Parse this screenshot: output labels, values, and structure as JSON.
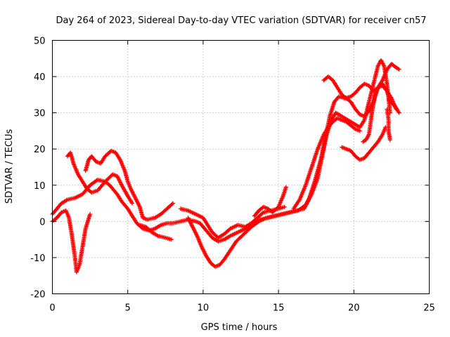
{
  "chart_data": {
    "type": "scatter",
    "title": "Day 264 of 2023, Sidereal Day-to-day VTEC variation (SDTVAR) for receiver cn57",
    "xlabel": "GPS time / hours",
    "ylabel": "SDTVAR / TECUs",
    "xlim": [
      0,
      25
    ],
    "ylim": [
      -20,
      50
    ],
    "xticks": [
      0,
      5,
      10,
      15,
      20,
      25
    ],
    "yticks": [
      -20,
      -10,
      0,
      10,
      20,
      30,
      40,
      50
    ],
    "xtick_labels": [
      "0",
      "5",
      "10",
      "15",
      "20",
      "25"
    ],
    "ytick_labels": [
      "-20",
      "-10",
      "0",
      "10",
      "20",
      "30",
      "40",
      "50"
    ],
    "grid": true,
    "legend": "none",
    "marker": "plus",
    "color": "#ff0000",
    "series": [
      {
        "points": [
          [
            0.0,
            2.0
          ],
          [
            0.3,
            3.5
          ],
          [
            0.6,
            5.0
          ],
          [
            1.0,
            6.0
          ],
          [
            1.5,
            6.5
          ],
          [
            2.0,
            7.5
          ],
          [
            2.5,
            10.0
          ],
          [
            3.0,
            11.5
          ],
          [
            3.5,
            11.0
          ],
          [
            3.8,
            10.0
          ],
          [
            4.0,
            9.0
          ],
          [
            4.3,
            7.5
          ],
          [
            4.6,
            5.5
          ],
          [
            5.0,
            3.5
          ],
          [
            5.3,
            1.5
          ],
          [
            5.6,
            -0.5
          ],
          [
            6.0,
            -2.0
          ],
          [
            6.4,
            -2.5
          ],
          [
            6.8,
            -2.0
          ],
          [
            7.2,
            -1.0
          ],
          [
            7.6,
            -0.5
          ],
          [
            8.0,
            -0.5
          ],
          [
            8.5,
            0.0
          ],
          [
            9.0,
            0.5
          ],
          [
            9.5,
            0.0
          ],
          [
            9.8,
            -0.5
          ],
          [
            10.2,
            -2.5
          ],
          [
            10.6,
            -4.5
          ],
          [
            11.0,
            -5.5
          ],
          [
            11.4,
            -5.0
          ],
          [
            11.8,
            -4.0
          ],
          [
            12.3,
            -3.0
          ],
          [
            12.8,
            -2.0
          ],
          [
            13.3,
            -0.5
          ],
          [
            13.8,
            0.5
          ],
          [
            14.3,
            1.0
          ],
          [
            14.8,
            1.5
          ],
          [
            15.3,
            2.0
          ],
          [
            15.8,
            2.5
          ],
          [
            16.3,
            3.0
          ],
          [
            16.8,
            4.5
          ],
          [
            17.2,
            7.5
          ],
          [
            17.6,
            12.0
          ],
          [
            17.9,
            18.0
          ],
          [
            18.2,
            24.0
          ],
          [
            18.5,
            28.0
          ],
          [
            18.8,
            30.0
          ],
          [
            19.2,
            29.0
          ],
          [
            19.6,
            28.0
          ],
          [
            20.0,
            27.0
          ],
          [
            20.4,
            26.0
          ],
          [
            20.7,
            28.0
          ],
          [
            21.0,
            33.0
          ],
          [
            21.3,
            38.0
          ],
          [
            21.6,
            43.0
          ],
          [
            21.8,
            44.5
          ],
          [
            22.0,
            43.0
          ],
          [
            22.2,
            38.0
          ],
          [
            22.4,
            30.0
          ]
        ]
      },
      {
        "points": [
          [
            0.0,
            0.0
          ],
          [
            0.3,
            1.0
          ],
          [
            0.6,
            2.5
          ],
          [
            0.9,
            3.0
          ],
          [
            1.1,
            1.0
          ],
          [
            1.3,
            -4.0
          ],
          [
            1.5,
            -10.0
          ],
          [
            1.6,
            -14.0
          ],
          [
            1.8,
            -12.0
          ],
          [
            2.0,
            -7.0
          ],
          [
            2.2,
            -2.0
          ],
          [
            2.5,
            2.0
          ]
        ]
      },
      {
        "points": [
          [
            1.0,
            18.0
          ],
          [
            1.2,
            19.0
          ],
          [
            1.4,
            16.0
          ],
          [
            1.7,
            13.0
          ],
          [
            2.0,
            11.0
          ],
          [
            2.3,
            9.0
          ],
          [
            2.6,
            8.0
          ],
          [
            3.0,
            8.5
          ],
          [
            3.5,
            11.0
          ],
          [
            4.0,
            13.0
          ],
          [
            4.3,
            12.5
          ],
          [
            4.6,
            10.0
          ],
          [
            5.0,
            7.0
          ],
          [
            5.3,
            5.0
          ]
        ]
      },
      {
        "points": [
          [
            2.2,
            14.0
          ],
          [
            2.4,
            17.0
          ],
          [
            2.6,
            18.0
          ],
          [
            2.9,
            16.5
          ],
          [
            3.2,
            16.0
          ],
          [
            3.5,
            18.0
          ],
          [
            3.9,
            19.5
          ],
          [
            4.2,
            19.0
          ],
          [
            4.5,
            17.0
          ],
          [
            4.8,
            14.0
          ],
          [
            5.0,
            11.0
          ],
          [
            5.2,
            9.0
          ],
          [
            5.5,
            6.5
          ],
          [
            5.8,
            4.0
          ],
          [
            6.0,
            1.0
          ],
          [
            6.3,
            0.5
          ],
          [
            6.8,
            1.0
          ],
          [
            7.2,
            2.0
          ],
          [
            7.6,
            3.5
          ],
          [
            8.0,
            5.0
          ]
        ]
      },
      {
        "points": [
          [
            5.8,
            -1.0
          ],
          [
            6.2,
            -1.5
          ],
          [
            6.6,
            -3.0
          ],
          [
            7.0,
            -4.0
          ],
          [
            7.5,
            -4.5
          ],
          [
            7.9,
            -5.0
          ]
        ]
      },
      {
        "points": [
          [
            8.5,
            3.5
          ],
          [
            9.0,
            3.0
          ],
          [
            9.5,
            2.0
          ],
          [
            10.0,
            1.0
          ],
          [
            10.3,
            -1.0
          ],
          [
            10.6,
            -3.0
          ],
          [
            11.0,
            -4.5
          ],
          [
            11.4,
            -3.5
          ],
          [
            11.8,
            -2.0
          ],
          [
            12.3,
            -1.0
          ],
          [
            12.8,
            -1.5
          ],
          [
            13.2,
            -0.5
          ],
          [
            13.6,
            1.0
          ],
          [
            14.0,
            2.5
          ],
          [
            14.5,
            3.0
          ],
          [
            15.0,
            3.5
          ],
          [
            15.4,
            4.0
          ]
        ]
      },
      {
        "points": [
          [
            9.0,
            1.0
          ],
          [
            9.3,
            -1.5
          ],
          [
            9.6,
            -4.0
          ],
          [
            9.9,
            -7.0
          ],
          [
            10.2,
            -9.5
          ],
          [
            10.5,
            -11.5
          ],
          [
            10.8,
            -12.5
          ],
          [
            11.1,
            -12.0
          ],
          [
            11.4,
            -10.5
          ],
          [
            11.8,
            -8.0
          ],
          [
            12.2,
            -5.5
          ],
          [
            12.7,
            -3.5
          ],
          [
            13.2,
            -1.5
          ],
          [
            13.7,
            0.0
          ],
          [
            14.2,
            1.0
          ],
          [
            14.7,
            1.5
          ],
          [
            15.2,
            2.0
          ],
          [
            15.7,
            2.5
          ],
          [
            16.2,
            3.0
          ],
          [
            16.7,
            3.5
          ],
          [
            17.0,
            6.0
          ],
          [
            17.4,
            11.0
          ],
          [
            17.8,
            17.0
          ],
          [
            18.1,
            23.0
          ],
          [
            18.4,
            29.0
          ],
          [
            18.7,
            33.0
          ],
          [
            19.0,
            34.5
          ],
          [
            19.4,
            34.0
          ],
          [
            19.8,
            34.5
          ],
          [
            20.1,
            35.5
          ],
          [
            20.4,
            37.0
          ],
          [
            20.7,
            38.0
          ],
          [
            21.0,
            37.5
          ],
          [
            21.3,
            36.0
          ],
          [
            21.6,
            37.0
          ],
          [
            21.9,
            38.0
          ],
          [
            22.2,
            36.0
          ],
          [
            22.5,
            34.0
          ],
          [
            22.8,
            31.0
          ]
        ]
      },
      {
        "points": [
          [
            13.4,
            1.5
          ],
          [
            13.7,
            3.0
          ],
          [
            14.0,
            4.0
          ],
          [
            14.3,
            3.5
          ],
          [
            14.6,
            2.5
          ],
          [
            15.0,
            4.0
          ],
          [
            15.3,
            7.0
          ],
          [
            15.5,
            9.5
          ]
        ]
      },
      {
        "points": [
          [
            16.0,
            3.5
          ],
          [
            16.4,
            6.0
          ],
          [
            16.8,
            10.0
          ],
          [
            17.2,
            15.0
          ],
          [
            17.6,
            20.0
          ],
          [
            18.0,
            24.0
          ],
          [
            18.3,
            26.0
          ],
          [
            18.6,
            27.5
          ],
          [
            18.9,
            28.5
          ],
          [
            19.2,
            28.0
          ],
          [
            19.5,
            27.5
          ],
          [
            19.8,
            26.5
          ],
          [
            20.1,
            25.5
          ],
          [
            20.4,
            25.0
          ]
        ]
      },
      {
        "points": [
          [
            18.0,
            39.0
          ],
          [
            18.3,
            40.0
          ],
          [
            18.6,
            39.0
          ],
          [
            18.9,
            37.0
          ],
          [
            19.2,
            35.0
          ],
          [
            19.5,
            34.0
          ],
          [
            19.8,
            33.0
          ],
          [
            20.1,
            31.0
          ],
          [
            20.4,
            29.5
          ],
          [
            20.7,
            29.0
          ],
          [
            21.0,
            30.5
          ],
          [
            21.3,
            33.0
          ],
          [
            21.6,
            37.0
          ],
          [
            21.9,
            39.0
          ],
          [
            22.2,
            42.0
          ],
          [
            22.5,
            43.5
          ],
          [
            22.8,
            42.5
          ],
          [
            23.0,
            42.0
          ]
        ]
      },
      {
        "points": [
          [
            19.2,
            20.5
          ],
          [
            19.5,
            20.0
          ],
          [
            19.8,
            19.5
          ],
          [
            20.1,
            18.0
          ],
          [
            20.4,
            17.0
          ],
          [
            20.7,
            17.5
          ],
          [
            21.0,
            19.0
          ],
          [
            21.3,
            20.5
          ],
          [
            21.6,
            22.0
          ],
          [
            21.9,
            24.0
          ],
          [
            22.1,
            26.0
          ]
        ]
      },
      {
        "points": [
          [
            20.6,
            22.0
          ],
          [
            20.8,
            22.5
          ],
          [
            21.0,
            24.0
          ],
          [
            21.2,
            30.0
          ],
          [
            21.4,
            35.0
          ],
          [
            21.6,
            37.0
          ],
          [
            21.9,
            37.5
          ],
          [
            22.2,
            36.0
          ],
          [
            22.4,
            33.0
          ],
          [
            22.7,
            32.0
          ],
          [
            23.0,
            30.0
          ]
        ]
      },
      {
        "points": [
          [
            22.2,
            31.0
          ],
          [
            22.3,
            28.0
          ],
          [
            22.3,
            25.0
          ],
          [
            22.4,
            22.5
          ]
        ]
      }
    ]
  }
}
